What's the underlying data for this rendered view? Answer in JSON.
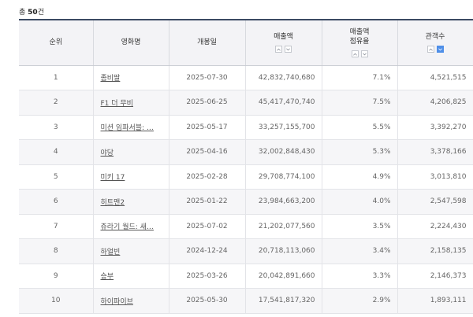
{
  "summary": {
    "prefix": "총",
    "count": "50",
    "suffix": "건"
  },
  "columns": {
    "rank": "순위",
    "title": "영화명",
    "open_date": "개봉일",
    "revenue": "매출액",
    "share_line1": "매출액",
    "share_line2": "점유율",
    "audience": "관객수"
  },
  "sort_icons": {
    "up": "chevron-up-icon",
    "down": "chevron-down-icon"
  },
  "colors": {
    "header_border": "#3b4a63",
    "header_bg": "#f3f3f6",
    "active_sort": "#4f8fe8",
    "shaded_row": "#f6f6f8"
  },
  "rows": [
    {
      "rank": "1",
      "title": "좀비딸",
      "open_date": "2025-07-30",
      "revenue": "42,832,740,680",
      "share": "7.1%",
      "audience": "4,521,515"
    },
    {
      "rank": "2",
      "title": "F1 더 무비",
      "open_date": "2025-06-25",
      "revenue": "45,417,470,740",
      "share": "7.5%",
      "audience": "4,206,825"
    },
    {
      "rank": "3",
      "title": "미션 임파서블: …",
      "open_date": "2025-05-17",
      "revenue": "33,257,155,700",
      "share": "5.5%",
      "audience": "3,392,270"
    },
    {
      "rank": "4",
      "title": "야당",
      "open_date": "2025-04-16",
      "revenue": "32,002,848,430",
      "share": "5.3%",
      "audience": "3,378,166"
    },
    {
      "rank": "5",
      "title": "미키 17",
      "open_date": "2025-02-28",
      "revenue": "29,708,774,100",
      "share": "4.9%",
      "audience": "3,013,810"
    },
    {
      "rank": "6",
      "title": "히트맨2",
      "open_date": "2025-01-22",
      "revenue": "23,984,663,200",
      "share": "4.0%",
      "audience": "2,547,598"
    },
    {
      "rank": "7",
      "title": "쥬라기 월드: 새…",
      "open_date": "2025-07-02",
      "revenue": "21,202,077,560",
      "share": "3.5%",
      "audience": "2,224,430"
    },
    {
      "rank": "8",
      "title": "하얼빈",
      "open_date": "2024-12-24",
      "revenue": "20,718,113,060",
      "share": "3.4%",
      "audience": "2,158,135"
    },
    {
      "rank": "9",
      "title": "승부",
      "open_date": "2025-03-26",
      "revenue": "20,042,891,660",
      "share": "3.3%",
      "audience": "2,146,373"
    },
    {
      "rank": "10",
      "title": "하이파이브",
      "open_date": "2025-05-30",
      "revenue": "17,541,817,320",
      "share": "2.9%",
      "audience": "1,893,111"
    }
  ]
}
